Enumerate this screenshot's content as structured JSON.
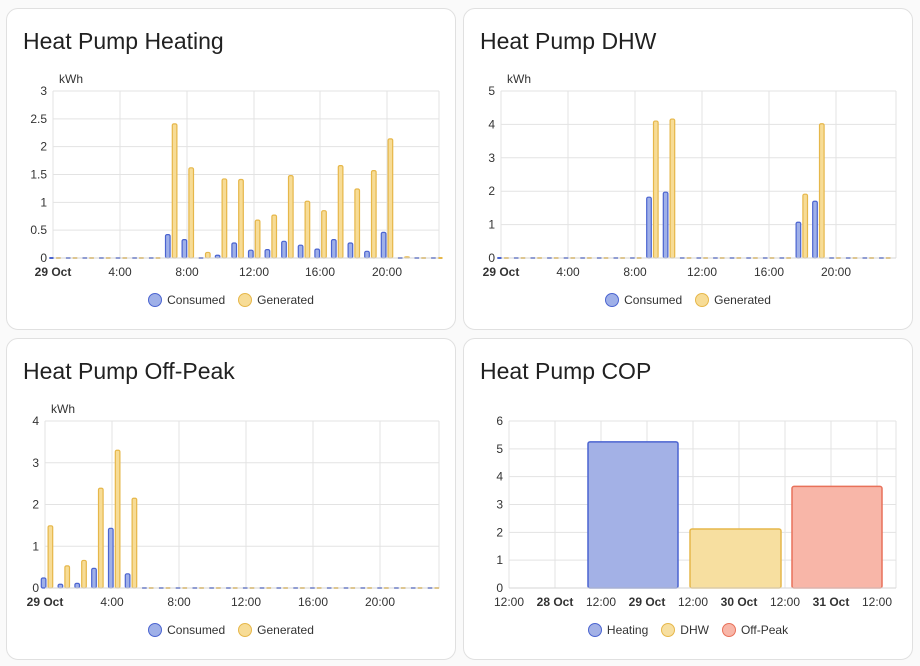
{
  "cards": [
    {
      "title": "Heat Pump Heating",
      "chart_data": {
        "type": "bar",
        "unit_label": "kWh",
        "ylim": [
          0,
          3
        ],
        "yticks": [
          "0",
          "0.5",
          "1",
          "1.5",
          "2",
          "2.5",
          "3"
        ],
        "xticks": [
          "29 Oct",
          "4:00",
          "8:00",
          "12:00",
          "16:00",
          "20:00"
        ],
        "legend_position": "bottom",
        "grid": true,
        "categories": [
          "00:00",
          "01:00",
          "02:00",
          "03:00",
          "04:00",
          "05:00",
          "06:00",
          "07:00",
          "08:00",
          "09:00",
          "10:00",
          "11:00",
          "12:00",
          "13:00",
          "14:00",
          "15:00",
          "16:00",
          "17:00",
          "18:00",
          "19:00",
          "20:00",
          "21:00",
          "22:00",
          "23:00"
        ],
        "series": [
          {
            "name": "Consumed",
            "color": "#4b64d0",
            "fill": "#9fb0e8",
            "values": [
              0,
              0,
              0,
              0,
              0,
              0,
              0,
              0.42,
              0.33,
              0,
              0.05,
              0.27,
              0.14,
              0.15,
              0.3,
              0.23,
              0.16,
              0.33,
              0.27,
              0.12,
              0.46,
              0,
              0,
              0
            ]
          },
          {
            "name": "Generated",
            "color": "#e6b74a",
            "fill": "#f7dc96",
            "values": [
              0,
              0,
              0,
              0,
              0,
              0,
              0,
              2.41,
              1.62,
              0.1,
              1.42,
              1.41,
              0.68,
              0.77,
              1.48,
              1.02,
              0.85,
              1.66,
              1.24,
              1.57,
              2.14,
              0.02,
              0,
              0
            ]
          }
        ]
      },
      "legend": [
        {
          "name": "Consumed",
          "color": "#4b64d0",
          "fill": "#9fb0e8"
        },
        {
          "name": "Generated",
          "color": "#e6b74a",
          "fill": "#f7dc96"
        }
      ]
    },
    {
      "title": "Heat Pump DHW",
      "chart_data": {
        "type": "bar",
        "unit_label": "kWh",
        "ylim": [
          0,
          5
        ],
        "yticks": [
          "0",
          "1",
          "2",
          "3",
          "4",
          "5"
        ],
        "xticks": [
          "29 Oct",
          "4:00",
          "8:00",
          "12:00",
          "16:00",
          "20:00"
        ],
        "legend_position": "bottom",
        "grid": true,
        "categories": [
          "00:00",
          "01:00",
          "02:00",
          "03:00",
          "04:00",
          "05:00",
          "06:00",
          "07:00",
          "08:00",
          "09:00",
          "10:00",
          "11:00",
          "12:00",
          "13:00",
          "14:00",
          "15:00",
          "16:00",
          "17:00",
          "18:00",
          "19:00",
          "20:00",
          "21:00",
          "22:00",
          "23:00"
        ],
        "series": [
          {
            "name": "Consumed",
            "color": "#4b64d0",
            "fill": "#9fb0e8",
            "values": [
              0,
              0,
              0,
              0,
              0,
              0,
              0,
              0,
              0,
              1.82,
              1.97,
              0,
              0,
              0,
              0,
              0,
              0,
              0,
              1.07,
              1.7,
              0,
              0,
              0,
              0
            ]
          },
          {
            "name": "Generated",
            "color": "#e6b74a",
            "fill": "#f7dc96",
            "values": [
              0,
              0,
              0,
              0,
              0,
              0,
              0,
              0,
              0,
              4.1,
              4.16,
              0,
              0,
              0,
              0,
              0,
              0,
              0,
              1.91,
              4.02,
              0,
              0,
              0,
              0
            ]
          }
        ]
      },
      "legend": [
        {
          "name": "Consumed",
          "color": "#4b64d0",
          "fill": "#9fb0e8"
        },
        {
          "name": "Generated",
          "color": "#e6b74a",
          "fill": "#f7dc96"
        }
      ]
    },
    {
      "title": "Heat Pump Off-Peak",
      "chart_data": {
        "type": "bar",
        "unit_label": "kWh",
        "ylim": [
          0,
          4
        ],
        "yticks": [
          "0",
          "1",
          "2",
          "3",
          "4"
        ],
        "xticks": [
          "29 Oct",
          "4:00",
          "8:00",
          "12:00",
          "16:00",
          "20:00"
        ],
        "legend_position": "bottom",
        "grid": true,
        "categories": [
          "00:00",
          "01:00",
          "02:00",
          "03:00",
          "04:00",
          "05:00",
          "06:00",
          "07:00",
          "08:00",
          "09:00",
          "10:00",
          "11:00",
          "12:00",
          "13:00",
          "14:00",
          "15:00",
          "16:00",
          "17:00",
          "18:00",
          "19:00",
          "20:00",
          "21:00",
          "22:00",
          "23:00"
        ],
        "series": [
          {
            "name": "Consumed",
            "color": "#4b64d0",
            "fill": "#9fb0e8",
            "values": [
              0.24,
              0.09,
              0.11,
              0.47,
              1.43,
              0.34,
              0,
              0,
              0,
              0,
              0,
              0,
              0,
              0,
              0,
              0,
              0,
              0,
              0,
              0,
              0,
              0,
              0,
              0
            ]
          },
          {
            "name": "Generated",
            "color": "#e6b74a",
            "fill": "#f7dc96",
            "values": [
              1.49,
              0.53,
              0.66,
              2.39,
              3.3,
              2.15,
              0,
              0,
              0,
              0,
              0,
              0,
              0,
              0,
              0,
              0,
              0,
              0,
              0,
              0,
              0,
              0,
              0,
              0
            ]
          }
        ]
      },
      "legend": [
        {
          "name": "Consumed",
          "color": "#4b64d0",
          "fill": "#9fb0e8"
        },
        {
          "name": "Generated",
          "color": "#e6b74a",
          "fill": "#f7dc96"
        }
      ]
    },
    {
      "title": "Heat Pump COP",
      "chart_data": {
        "type": "bar",
        "ylim": [
          0,
          6
        ],
        "yticks": [
          "0",
          "1",
          "2",
          "3",
          "4",
          "5",
          "6"
        ],
        "xticks": [
          "12:00",
          "28 Oct",
          "12:00",
          "29 Oct",
          "12:00",
          "30 Oct",
          "12:00",
          "31 Oct",
          "12:00"
        ],
        "legend_position": "bottom",
        "grid": true,
        "categories": [
          "29 Oct",
          "30 Oct",
          "31 Oct"
        ],
        "series": [
          {
            "name": "Heating",
            "color": "#4b64d0",
            "fill": "#a3b1e6",
            "values": [
              5.25,
              null,
              null
            ]
          },
          {
            "name": "DHW",
            "color": "#e6b74a",
            "fill": "#f7dfa0",
            "values": [
              null,
              2.12,
              null
            ]
          },
          {
            "name": "Off-Peak",
            "color": "#e8715a",
            "fill": "#f8b6a8",
            "values": [
              null,
              null,
              3.65
            ]
          }
        ]
      },
      "legend": [
        {
          "name": "Heating",
          "color": "#4b64d0",
          "fill": "#a3b1e6"
        },
        {
          "name": "DHW",
          "color": "#e6b74a",
          "fill": "#f7dfa0"
        },
        {
          "name": "Off-Peak",
          "color": "#e8715a",
          "fill": "#f8b6a8"
        }
      ]
    }
  ]
}
